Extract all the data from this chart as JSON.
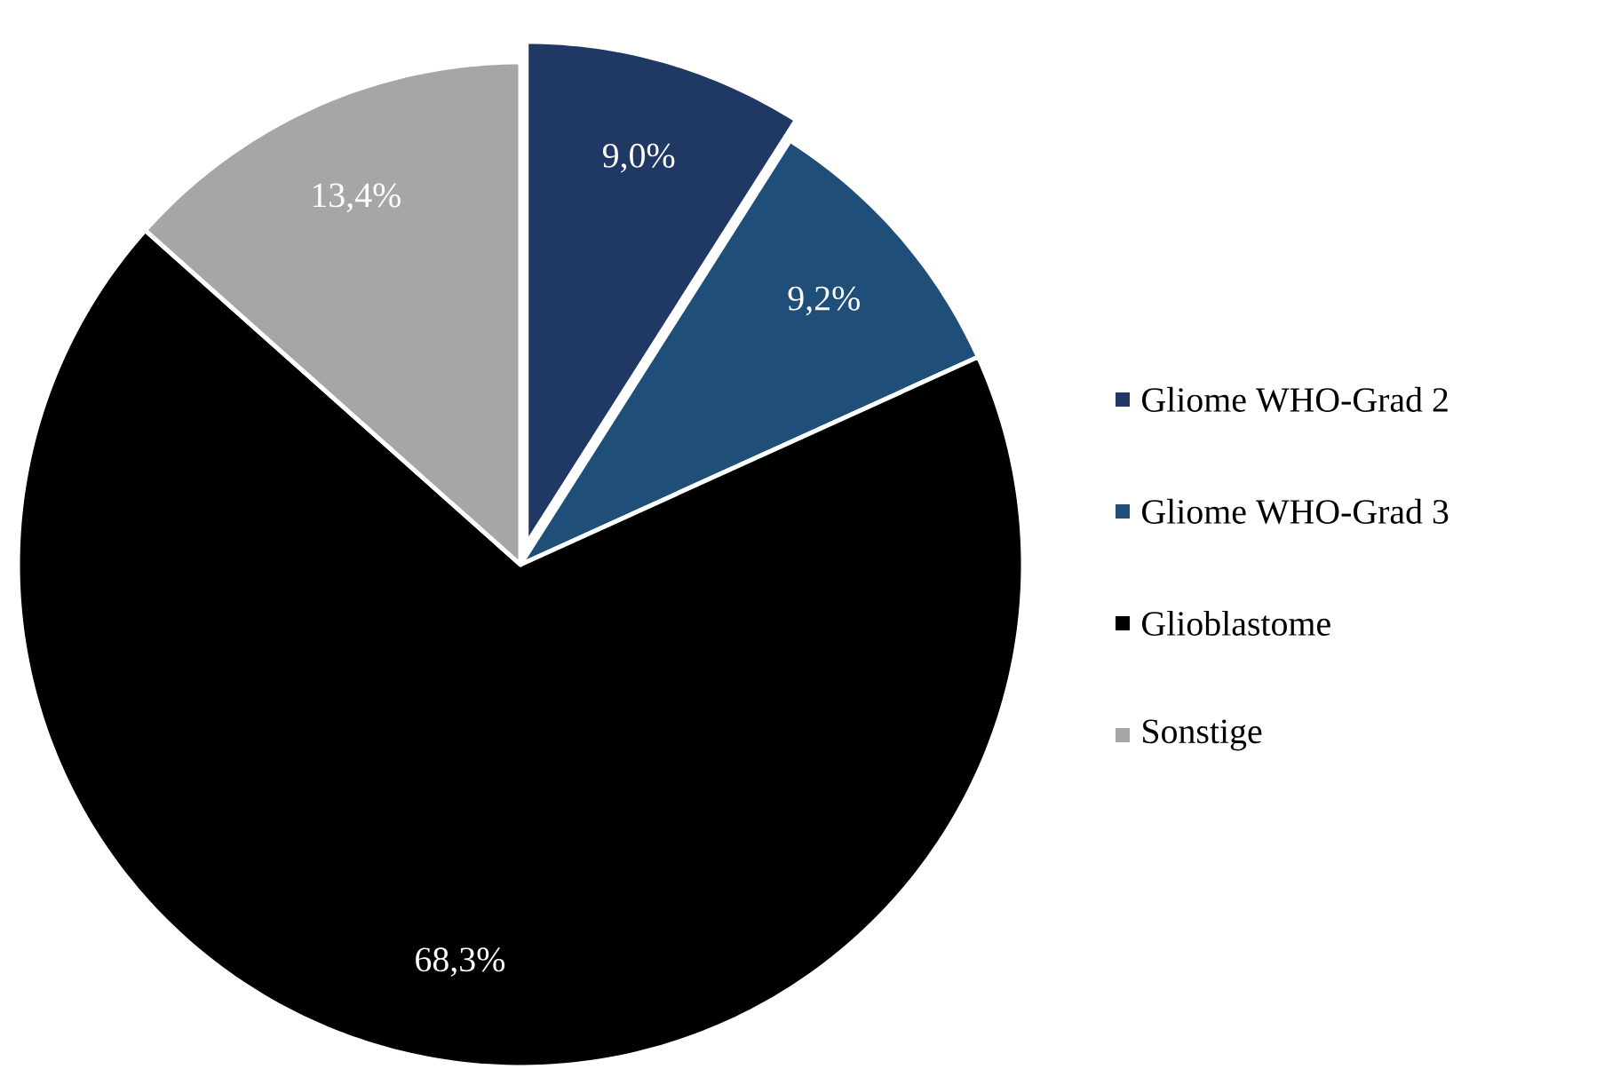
{
  "chart_data": {
    "type": "pie",
    "categories": [
      "Gliome WHO-Grad 2",
      "Gliome WHO-Grad 3",
      "Glioblastome",
      "Sonstige"
    ],
    "values": [
      9.0,
      9.2,
      68.3,
      13.4
    ],
    "value_labels": [
      "9,0%",
      "9,2%",
      "68,3%",
      "13,4%"
    ],
    "colors": [
      "#203864",
      "#1f4e79",
      "#000000",
      "#a6a6a6"
    ],
    "legend": "right"
  }
}
